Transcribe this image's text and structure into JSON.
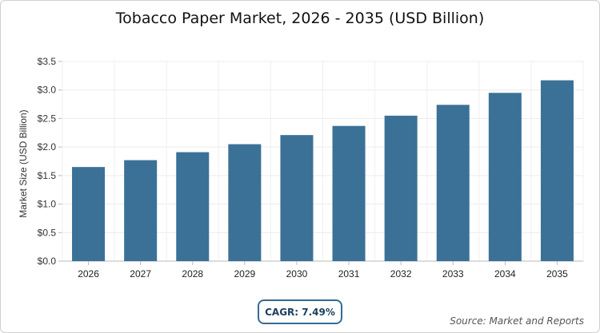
{
  "chart_data": {
    "type": "bar",
    "title": "Tobacco Paper Market, 2026 - 2035 (USD Billion)",
    "xlabel": "",
    "ylabel": "Market Size (USD Billion)",
    "categories": [
      "2026",
      "2027",
      "2028",
      "2029",
      "2030",
      "2031",
      "2032",
      "2033",
      "2034",
      "2035"
    ],
    "values": [
      1.65,
      1.77,
      1.91,
      2.05,
      2.21,
      2.37,
      2.55,
      2.74,
      2.95,
      3.17
    ],
    "ylim": [
      0,
      3.5
    ],
    "yticks": [
      "$0.0",
      "$0.5",
      "$1.0",
      "$1.5",
      "$2.0",
      "$2.5",
      "$3.0",
      "$3.5"
    ],
    "grid": true,
    "bar_color": "#3b7197"
  },
  "cagr_label": "CAGR: 7.49%",
  "source": "Source: Market and Reports"
}
